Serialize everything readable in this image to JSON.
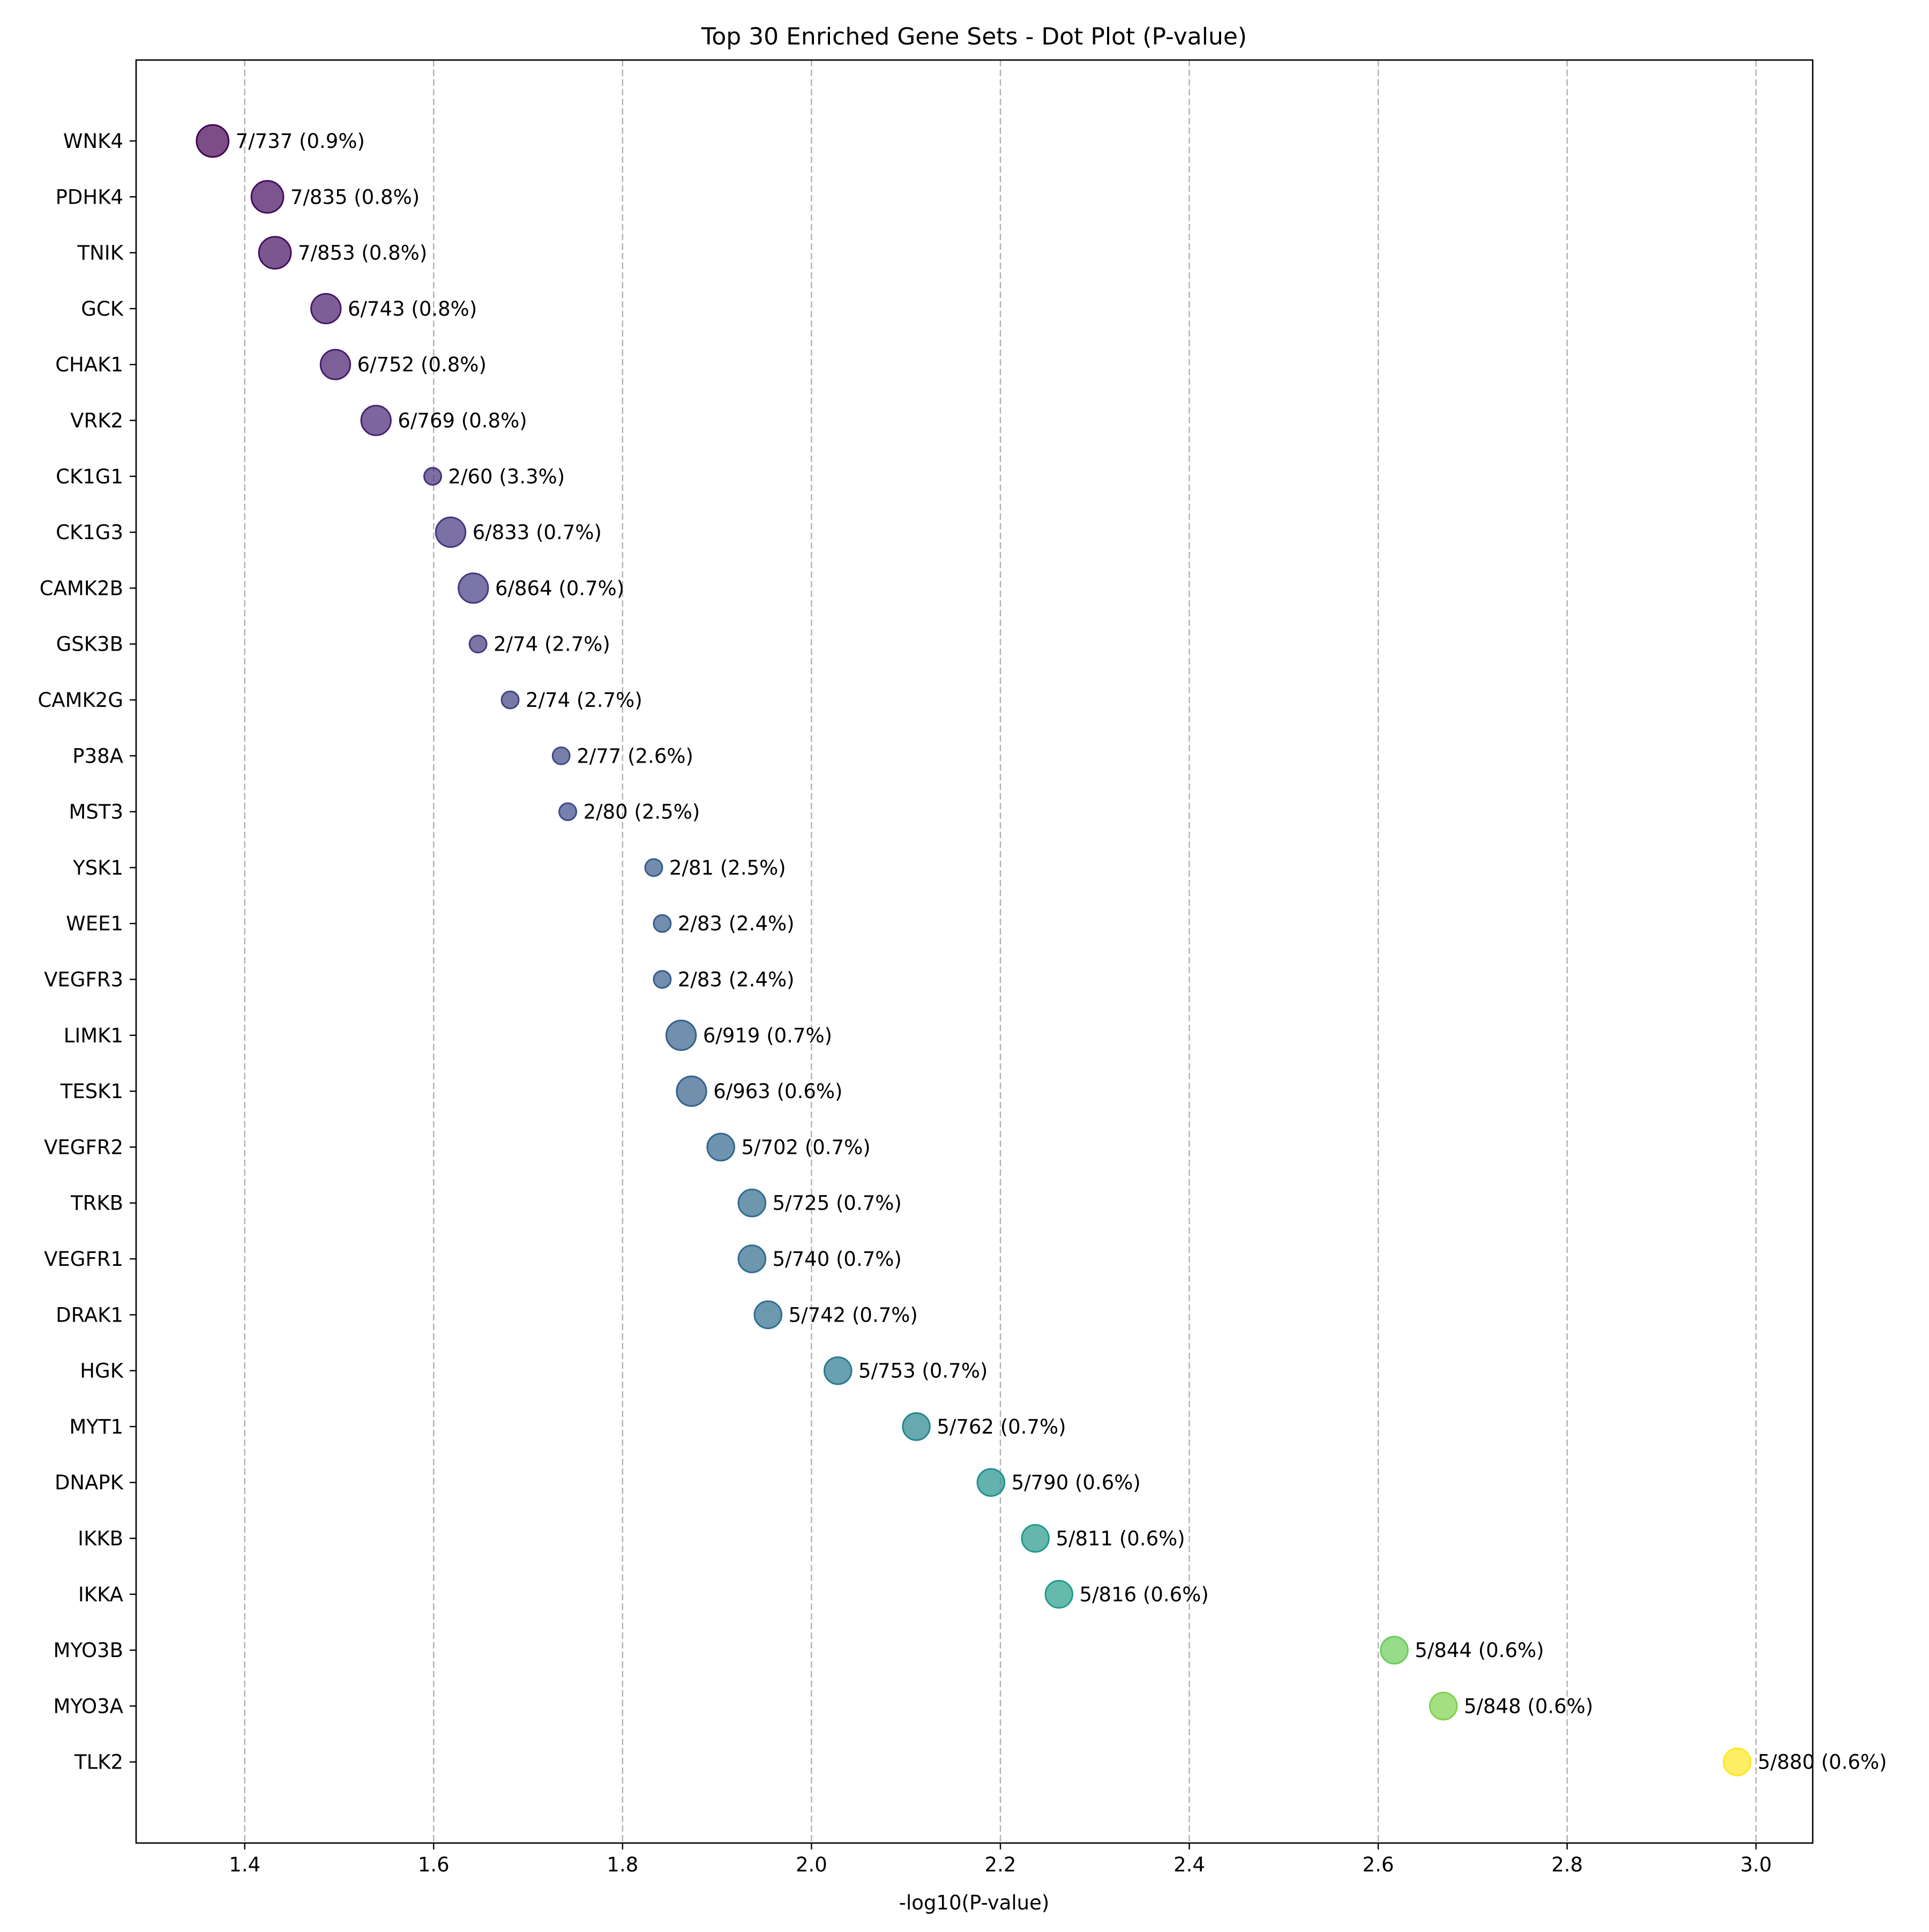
{
  "chart_data": {
    "type": "scatter",
    "title": "Top 30 Enriched Gene Sets - Dot Plot (P-value)",
    "xlabel": "-log10(P-value)",
    "ylabel": "",
    "xlim": [
      1.285,
      3.06
    ],
    "xticks": [
      "1.4",
      "1.6",
      "1.8",
      "2.0",
      "2.2",
      "2.4",
      "2.6",
      "2.8",
      "3.0"
    ],
    "grid": "vertical dashed",
    "colormap": "viridis",
    "points": [
      {
        "term": "WNK4",
        "x": 1.366,
        "overlap": 7,
        "total": 737,
        "label": "7/737 (0.9%)"
      },
      {
        "term": "PDHK4",
        "x": 1.424,
        "overlap": 7,
        "total": 835,
        "label": "7/835 (0.8%)"
      },
      {
        "term": "TNIK",
        "x": 1.432,
        "overlap": 7,
        "total": 853,
        "label": "7/853 (0.8%)"
      },
      {
        "term": "GCK",
        "x": 1.486,
        "overlap": 6,
        "total": 743,
        "label": "6/743 (0.8%)"
      },
      {
        "term": "CHAK1",
        "x": 1.496,
        "overlap": 6,
        "total": 752,
        "label": "6/752 (0.8%)"
      },
      {
        "term": "VRK2",
        "x": 1.539,
        "overlap": 6,
        "total": 769,
        "label": "6/769 (0.8%)"
      },
      {
        "term": "CK1G1",
        "x": 1.599,
        "overlap": 2,
        "total": 60,
        "label": "2/60 (3.3%)"
      },
      {
        "term": "CK1G3",
        "x": 1.618,
        "overlap": 6,
        "total": 833,
        "label": "6/833 (0.7%)"
      },
      {
        "term": "CAMK2B",
        "x": 1.642,
        "overlap": 6,
        "total": 864,
        "label": "6/864 (0.7%)"
      },
      {
        "term": "GSK3B",
        "x": 1.647,
        "overlap": 2,
        "total": 74,
        "label": "2/74 (2.7%)"
      },
      {
        "term": "CAMK2G",
        "x": 1.681,
        "overlap": 2,
        "total": 74,
        "label": "2/74 (2.7%)"
      },
      {
        "term": "P38A",
        "x": 1.735,
        "overlap": 2,
        "total": 77,
        "label": "2/77 (2.6%)"
      },
      {
        "term": "MST3",
        "x": 1.742,
        "overlap": 2,
        "total": 80,
        "label": "2/80 (2.5%)"
      },
      {
        "term": "YSK1",
        "x": 1.833,
        "overlap": 2,
        "total": 81,
        "label": "2/81 (2.5%)"
      },
      {
        "term": "WEE1",
        "x": 1.842,
        "overlap": 2,
        "total": 83,
        "label": "2/83 (2.4%)"
      },
      {
        "term": "VEGFR3",
        "x": 1.842,
        "overlap": 2,
        "total": 83,
        "label": "2/83 (2.4%)"
      },
      {
        "term": "LIMK1",
        "x": 1.862,
        "overlap": 6,
        "total": 919,
        "label": "6/919 (0.7%)"
      },
      {
        "term": "TESK1",
        "x": 1.873,
        "overlap": 6,
        "total": 963,
        "label": "6/963 (0.6%)"
      },
      {
        "term": "VEGFR2",
        "x": 1.904,
        "overlap": 5,
        "total": 702,
        "label": "5/702 (0.7%)"
      },
      {
        "term": "TRKB",
        "x": 1.937,
        "overlap": 5,
        "total": 725,
        "label": "5/725 (0.7%)"
      },
      {
        "term": "VEGFR1",
        "x": 1.937,
        "overlap": 5,
        "total": 740,
        "label": "5/740 (0.7%)"
      },
      {
        "term": "DRAK1",
        "x": 1.954,
        "overlap": 5,
        "total": 742,
        "label": "5/742 (0.7%)"
      },
      {
        "term": "HGK",
        "x": 2.028,
        "overlap": 5,
        "total": 753,
        "label": "5/753 (0.7%)"
      },
      {
        "term": "MYT1",
        "x": 2.111,
        "overlap": 5,
        "total": 762,
        "label": "5/762 (0.7%)"
      },
      {
        "term": "DNAPK",
        "x": 2.19,
        "overlap": 5,
        "total": 790,
        "label": "5/790 (0.6%)"
      },
      {
        "term": "IKKB",
        "x": 2.237,
        "overlap": 5,
        "total": 811,
        "label": "5/811 (0.6%)"
      },
      {
        "term": "IKKA",
        "x": 2.262,
        "overlap": 5,
        "total": 816,
        "label": "5/816 (0.6%)"
      },
      {
        "term": "MYO3B",
        "x": 2.617,
        "overlap": 5,
        "total": 844,
        "label": "5/844 (0.6%)"
      },
      {
        "term": "MYO3A",
        "x": 2.669,
        "overlap": 5,
        "total": 848,
        "label": "5/848 (0.6%)"
      },
      {
        "term": "TLK2",
        "x": 2.98,
        "overlap": 5,
        "total": 880,
        "label": "5/880 (0.6%)"
      }
    ]
  }
}
